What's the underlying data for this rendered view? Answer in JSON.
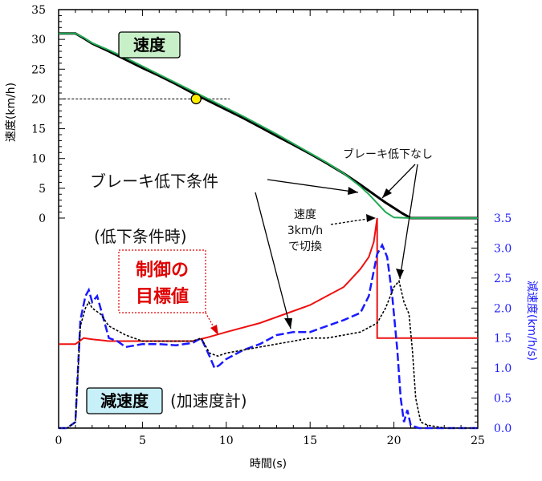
{
  "chart_data": {
    "type": "line",
    "xlabel": "時間(s)",
    "ylabel_left": "速度(km/h)",
    "ylabel_right": "減速度(km/h/s)",
    "xlim": [
      0,
      25
    ],
    "xticks": [
      "0",
      "5",
      "10",
      "15",
      "20",
      "25"
    ],
    "ylim_left": [
      0,
      35
    ],
    "yticks_left": [
      "0",
      "5",
      "10",
      "15",
      "20",
      "25",
      "30",
      "35"
    ],
    "ylim_right": [
      0,
      3.5
    ],
    "yticks_right": [
      "0.0",
      "0.5",
      "1.0",
      "1.5",
      "2.0",
      "2.5",
      "3.0",
      "3.5"
    ],
    "grid": false,
    "panels": {
      "speed_label": "速度",
      "decel_label": "減速度",
      "decel_sub_label": "(加速度計)"
    },
    "annotations": {
      "brake_condition": "ブレーキ低下条件",
      "no_brake_reduction": "ブレーキ低下なし",
      "speed_switch_line1": "速度",
      "speed_switch_line2": "3km/h",
      "speed_switch_line3": "で切換",
      "reduced_condition": "(低下条件時)",
      "target_line1": "制御の",
      "target_line2": "目標値"
    },
    "marker": {
      "x": 8.2,
      "y": 20,
      "color": "#ffee00"
    },
    "reference_line": {
      "y": 20,
      "x_from": 0.3,
      "x_to": 10.2
    },
    "speed_series": [
      {
        "style": "black solid",
        "color": "#000000",
        "x": [
          0,
          1,
          1.5,
          2,
          3,
          4,
          5,
          6,
          7,
          8,
          9,
          10,
          11,
          12,
          13,
          14,
          15,
          16,
          17,
          18,
          19,
          19.5,
          20,
          20.5,
          21,
          22,
          23,
          24,
          25
        ],
        "y": [
          31,
          31,
          30.2,
          29.3,
          28,
          26.6,
          25.2,
          23.9,
          22.5,
          21.0,
          19.6,
          18.2,
          16.8,
          15.3,
          13.8,
          12.3,
          10.8,
          9.2,
          7.5,
          5.6,
          3.6,
          2.6,
          1.7,
          0.8,
          0,
          0,
          0,
          0,
          0
        ]
      },
      {
        "style": "green solid",
        "color": "#22aa55",
        "x": [
          0,
          1,
          1.5,
          2,
          3,
          4,
          5,
          6,
          7,
          8,
          9,
          10,
          11,
          12,
          13,
          14,
          15,
          16,
          17,
          18,
          18.5,
          19,
          19.5,
          20,
          21,
          22,
          23,
          24,
          25
        ],
        "y": [
          31,
          31,
          30.3,
          29.4,
          28.2,
          26.9,
          25.5,
          24.1,
          22.7,
          21.3,
          19.9,
          18.5,
          17.1,
          15.6,
          14.1,
          12.5,
          10.9,
          9.3,
          7.5,
          5.3,
          4.0,
          2.5,
          1.0,
          0.1,
          0,
          0,
          0,
          0,
          0
        ]
      }
    ],
    "decel_series": [
      {
        "style": "red solid (target)",
        "color": "#ee1111",
        "x": [
          0,
          1,
          1.5,
          2,
          3,
          5,
          8,
          9,
          10,
          12,
          14,
          15,
          16,
          17,
          17.5,
          18,
          18.5,
          18.8,
          19.0,
          19.0,
          20,
          25
        ],
        "y": [
          1.4,
          1.4,
          1.5,
          1.48,
          1.45,
          1.45,
          1.45,
          1.52,
          1.6,
          1.75,
          1.95,
          2.05,
          2.2,
          2.35,
          2.5,
          2.65,
          2.85,
          3.1,
          3.5,
          1.5,
          1.5,
          1.5
        ]
      },
      {
        "style": "blue dashed (with reduction)",
        "color": "#1a1aff",
        "x": [
          0,
          0.5,
          1.0,
          1.3,
          1.6,
          1.8,
          2.0,
          2.3,
          2.6,
          3.0,
          3.5,
          4.0,
          5.0,
          6.0,
          7.0,
          8.0,
          8.5,
          9.0,
          9.3,
          9.6,
          10.0,
          11,
          12,
          13,
          14,
          15,
          16,
          17,
          18,
          18.5,
          19.0,
          19.3,
          19.6,
          19.9,
          20.2,
          20.4,
          20.6,
          20.8,
          21.0,
          21.5,
          22,
          25
        ],
        "y": [
          0,
          0,
          0.1,
          1.8,
          2.2,
          2.3,
          2.1,
          2.2,
          1.9,
          1.5,
          1.45,
          1.35,
          1.4,
          1.4,
          1.38,
          1.42,
          1.5,
          1.2,
          1.0,
          1.05,
          1.15,
          1.3,
          1.4,
          1.55,
          1.6,
          1.6,
          1.7,
          1.8,
          1.92,
          2.2,
          2.9,
          3.05,
          2.85,
          2.2,
          1.3,
          0.5,
          0.1,
          0.3,
          0.05,
          0,
          0,
          0
        ]
      },
      {
        "style": "black dotted (without reduction)",
        "color": "#000000",
        "x": [
          0,
          0.5,
          1.0,
          1.3,
          1.6,
          1.8,
          2.0,
          2.5,
          3.0,
          4.0,
          5.0,
          6.0,
          7.0,
          8.0,
          8.5,
          9.0,
          9.5,
          10,
          11,
          12,
          13,
          14,
          15,
          16,
          17,
          18,
          19,
          19.5,
          20.0,
          20.3,
          20.6,
          20.9,
          21.1,
          21.3,
          21.6,
          22,
          23,
          25
        ],
        "y": [
          0,
          0,
          0.1,
          1.7,
          2.0,
          2.1,
          2.0,
          1.9,
          1.7,
          1.55,
          1.45,
          1.45,
          1.45,
          1.45,
          1.5,
          1.25,
          1.2,
          1.25,
          1.3,
          1.35,
          1.4,
          1.45,
          1.5,
          1.5,
          1.55,
          1.6,
          1.75,
          2.0,
          2.35,
          2.45,
          2.1,
          1.9,
          1.3,
          0.5,
          0.1,
          0.05,
          0,
          0
        ]
      }
    ]
  }
}
